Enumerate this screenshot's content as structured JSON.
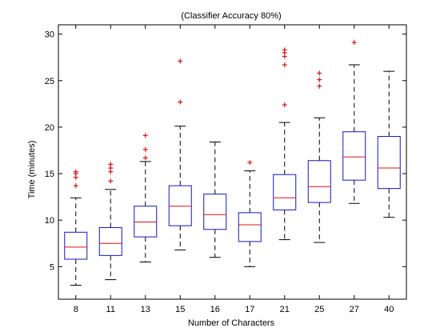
{
  "chart_data": {
    "type": "box",
    "title": "(Classifier Accuracy 80%)",
    "xlabel": "Number of Characters",
    "ylabel": "Time (minutes)",
    "ylim": [
      1.5,
      31
    ],
    "yticks": [
      5,
      10,
      15,
      20,
      25,
      30
    ],
    "grid": false,
    "colors": {
      "box": "#1515c8",
      "median": "#e01010",
      "whisker": "#000000",
      "outlier": "#e01010"
    },
    "categories": [
      "8",
      "11",
      "13",
      "15",
      "16",
      "17",
      "21",
      "25",
      "27",
      "40"
    ],
    "boxes": [
      {
        "whisker_low": 3.0,
        "q1": 5.8,
        "median": 7.1,
        "q3": 8.7,
        "whisker_high": 12.4,
        "outliers": [
          13.7,
          14.6,
          15.0,
          15.2
        ]
      },
      {
        "whisker_low": 3.6,
        "q1": 6.2,
        "median": 7.5,
        "q3": 9.2,
        "whisker_high": 13.3,
        "outliers": [
          14.2,
          15.2,
          15.6,
          16.0
        ]
      },
      {
        "whisker_low": 5.5,
        "q1": 8.2,
        "median": 9.8,
        "q3": 11.5,
        "whisker_high": 16.3,
        "outliers": [
          16.7,
          17.6,
          19.1
        ]
      },
      {
        "whisker_low": 6.8,
        "q1": 9.4,
        "median": 11.5,
        "q3": 13.7,
        "whisker_high": 20.1,
        "outliers": [
          22.7,
          27.1
        ]
      },
      {
        "whisker_low": 6.0,
        "q1": 9.0,
        "median": 10.6,
        "q3": 12.8,
        "whisker_high": 18.4,
        "outliers": []
      },
      {
        "whisker_low": 5.0,
        "q1": 7.7,
        "median": 9.5,
        "q3": 10.8,
        "whisker_high": 15.3,
        "outliers": [
          16.2
        ]
      },
      {
        "whisker_low": 7.9,
        "q1": 11.1,
        "median": 12.4,
        "q3": 14.9,
        "whisker_high": 20.5,
        "outliers": [
          22.4,
          26.7,
          27.6,
          28.0,
          28.3
        ]
      },
      {
        "whisker_low": 7.6,
        "q1": 11.9,
        "median": 13.6,
        "q3": 16.4,
        "whisker_high": 21.0,
        "outliers": [
          24.4,
          25.1,
          25.8
        ]
      },
      {
        "whisker_low": 11.8,
        "q1": 14.3,
        "median": 16.8,
        "q3": 19.5,
        "whisker_high": 26.7,
        "outliers": [
          29.1
        ]
      },
      {
        "whisker_low": 10.3,
        "q1": 13.4,
        "median": 15.6,
        "q3": 19.0,
        "whisker_high": 26.0,
        "outliers": []
      }
    ]
  }
}
